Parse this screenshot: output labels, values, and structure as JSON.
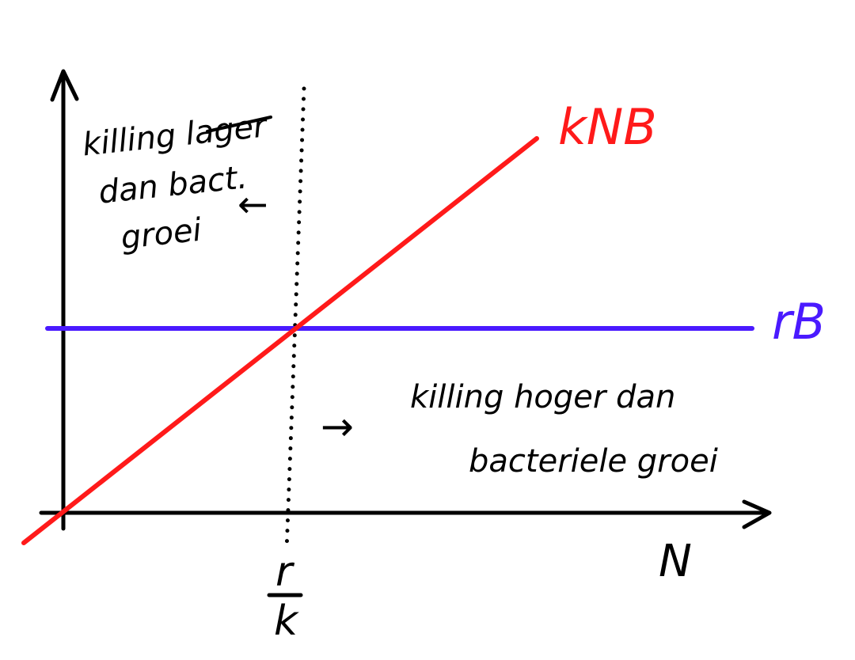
{
  "colors": {
    "ink": "#000000",
    "killing_line": "#ff1a1a",
    "growth_line": "#4a1aff"
  },
  "labels": {
    "killing_line": "kNB",
    "growth_line": "rB",
    "x_axis": "N",
    "threshold_numerator": "r",
    "threshold_denominator": "k"
  },
  "annotations": {
    "upper_left": {
      "line1": "killing lager",
      "line2": "dan bact.",
      "line3": "groei",
      "arrow": "←"
    },
    "lower_right": {
      "arrow": "→",
      "line1": "killing hoger dan",
      "line2": "bacteriele groei"
    }
  }
}
